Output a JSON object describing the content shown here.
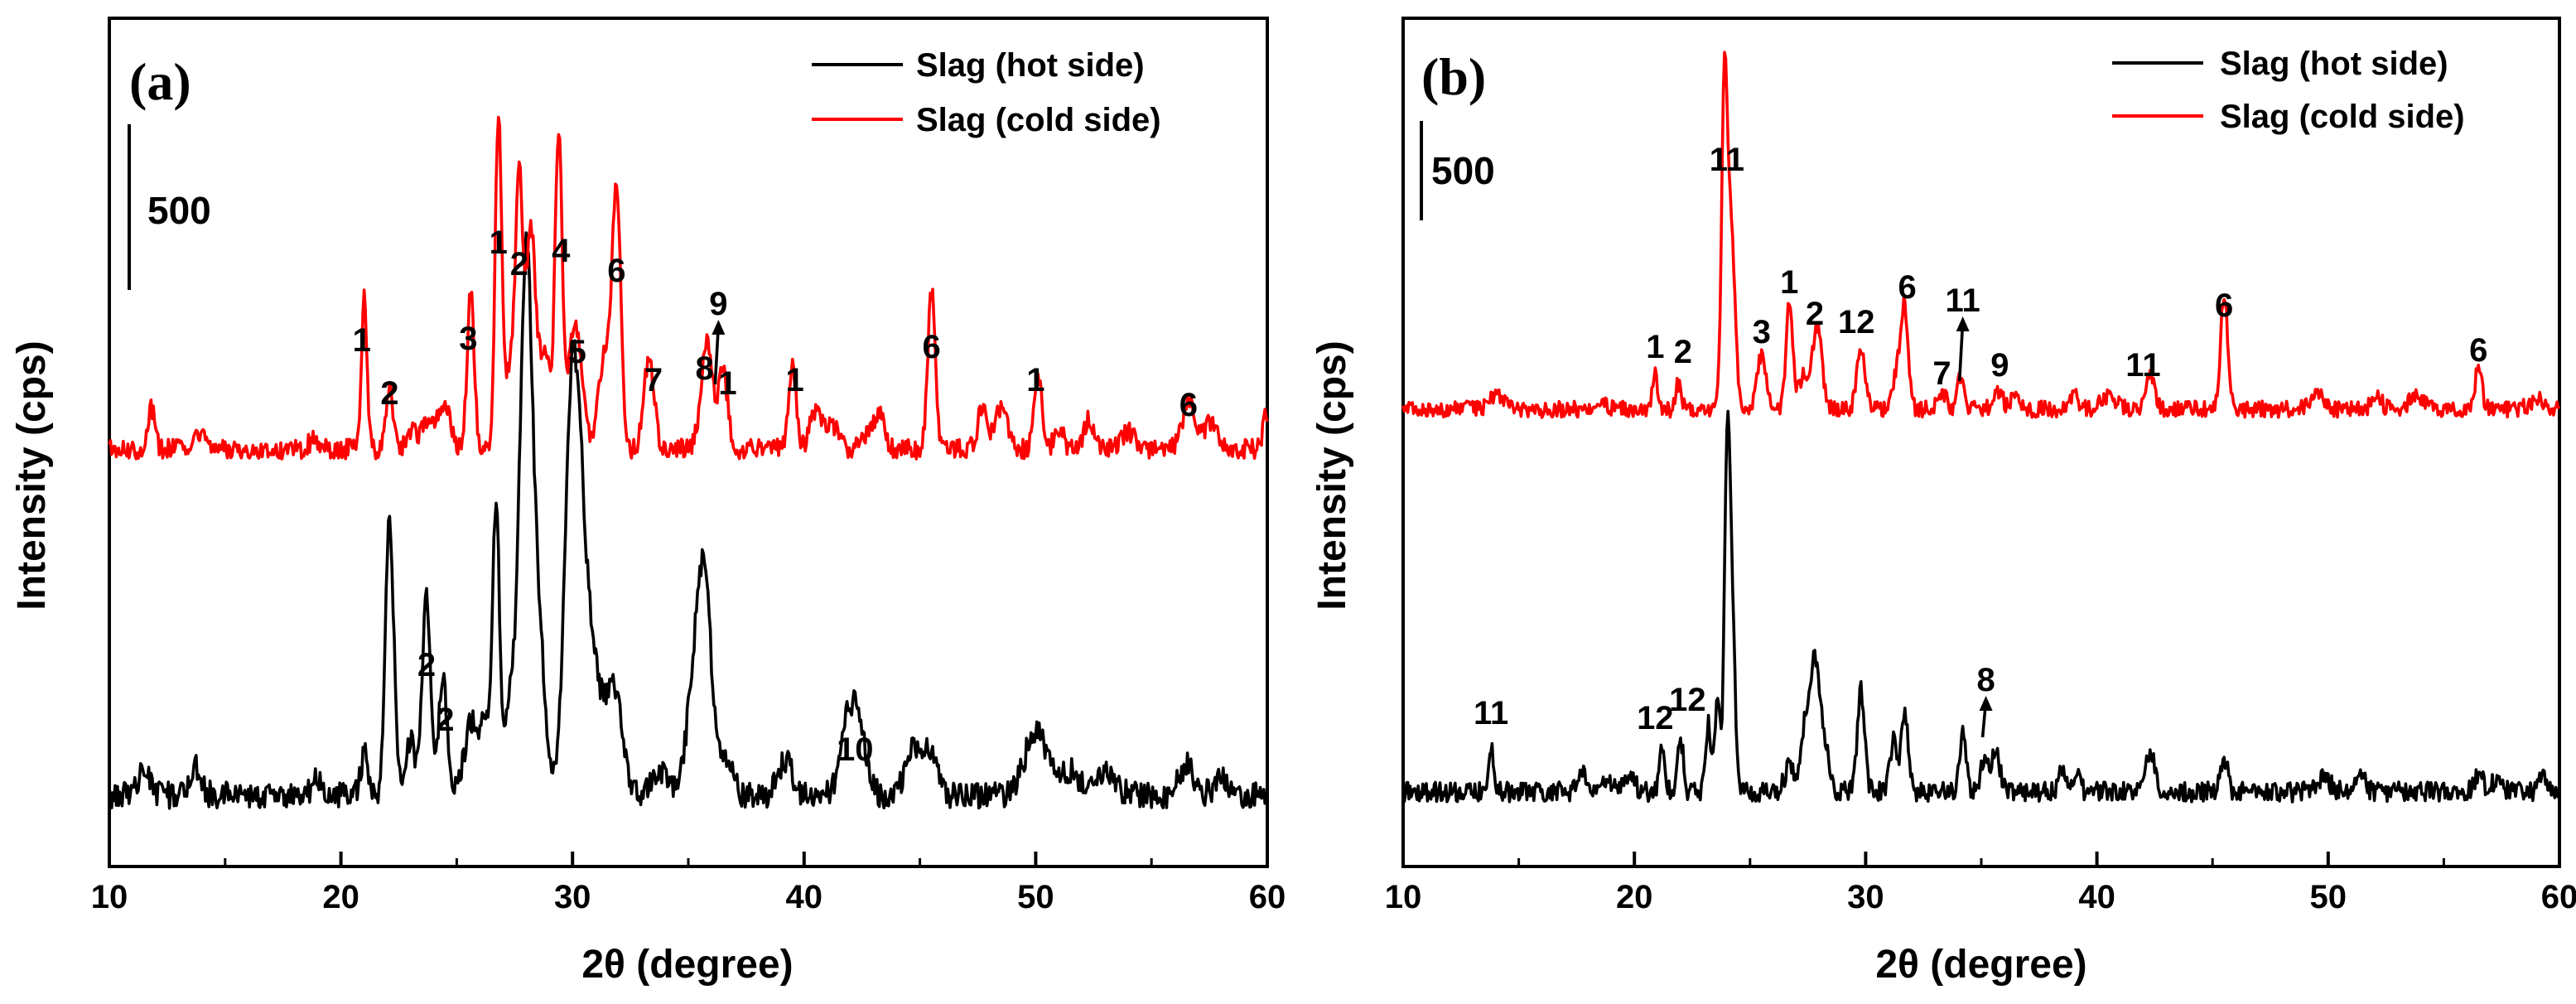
{
  "chart_data": [
    {
      "panel": "(a)",
      "type": "line",
      "xlabel": "2θ (degree)",
      "ylabel": "Intensity (cps)",
      "xlim": [
        10,
        60
      ],
      "xticks": [
        10,
        20,
        30,
        40,
        50,
        60
      ],
      "scale_bar": "500",
      "grid": false,
      "legend": "top-right",
      "series": [
        {
          "name": "Slag (hot side)",
          "color": "#000000",
          "baseline": 480,
          "noise": 8,
          "peaks": [
            [
              11.5,
              15,
              0.25
            ],
            [
              13.7,
              18,
              0.25
            ],
            [
              19.0,
              10,
              0.2
            ],
            [
              21.0,
              25,
              0.15
            ],
            [
              22.1,
              165,
              0.18
            ],
            [
              23.0,
              35,
              0.2
            ],
            [
              23.7,
              120,
              0.18
            ],
            [
              24.4,
              70,
              0.18
            ],
            [
              25.6,
              40,
              0.3
            ],
            [
              26.3,
              40,
              0.3
            ],
            [
              26.7,
              160,
              0.15
            ],
            [
              27.3,
              55,
              0.2
            ],
            [
              28.0,
              330,
              0.28
            ],
            [
              28.6,
              80,
              0.25
            ],
            [
              29.9,
              185,
              0.28
            ],
            [
              30.3,
              150,
              0.3
            ],
            [
              30.9,
              70,
              0.35
            ],
            [
              31.8,
              65,
              0.35
            ],
            [
              33.8,
              15,
              0.4
            ],
            [
              35.2,
              55,
              0.3
            ],
            [
              35.7,
              125,
              0.3
            ],
            [
              36.6,
              20,
              0.3
            ],
            [
              39.2,
              22,
              0.3
            ],
            [
              41.8,
              30,
              0.3
            ],
            [
              42.3,
              45,
              0.35
            ],
            [
              44.8,
              28,
              0.4
            ],
            [
              45.5,
              20,
              0.3
            ],
            [
              49.8,
              25,
              0.4
            ],
            [
              50.3,
              20,
              0.4
            ],
            [
              51.5,
              15,
              0.4
            ],
            [
              53.0,
              15,
              0.4
            ],
            [
              56.5,
              18,
              0.3
            ],
            [
              58.0,
              10,
              0.3
            ]
          ]
        },
        {
          "name": "Slag (cold side)",
          "color": "#ff0000",
          "baseline": 271,
          "noise": 6,
          "peaks": [
            [
              11.8,
              25,
              0.15
            ],
            [
              13.9,
              8,
              0.2
            ],
            [
              18.8,
              5,
              0.2
            ],
            [
              21.0,
              90,
              0.12
            ],
            [
              22.1,
              35,
              0.15
            ],
            [
              23.1,
              12,
              0.2
            ],
            [
              23.7,
              15,
              0.2
            ],
            [
              24.4,
              28,
              0.3
            ],
            [
              25.6,
              95,
              0.15
            ],
            [
              26.8,
              200,
              0.14
            ],
            [
              27.3,
              50,
              0.2
            ],
            [
              27.7,
              160,
              0.16
            ],
            [
              28.2,
              130,
              0.2
            ],
            [
              28.8,
              60,
              0.25
            ],
            [
              29.4,
              185,
              0.15
            ],
            [
              30.1,
              75,
              0.3
            ],
            [
              31.4,
              60,
              0.25
            ],
            [
              31.9,
              155,
              0.18
            ],
            [
              33.3,
              55,
              0.22
            ],
            [
              35.8,
              65,
              0.25
            ],
            [
              36.5,
              45,
              0.2
            ],
            [
              39.5,
              50,
              0.16
            ],
            [
              40.5,
              22,
              0.25
            ],
            [
              41.2,
              15,
              0.25
            ],
            [
              42.8,
              10,
              0.3
            ],
            [
              43.3,
              20,
              0.2
            ],
            [
              45.5,
              95,
              0.16
            ],
            [
              47.7,
              25,
              0.2
            ],
            [
              48.5,
              25,
              0.25
            ],
            [
              50.1,
              45,
              0.16
            ],
            [
              51.0,
              12,
              0.2
            ],
            [
              52.3,
              18,
              0.2
            ],
            [
              54.0,
              10,
              0.3
            ],
            [
              56.6,
              30,
              0.25
            ],
            [
              57.5,
              15,
              0.3
            ],
            [
              59.9,
              20,
              0.1
            ]
          ]
        }
      ],
      "annotations": [
        {
          "text": "1",
          "x": 20.9,
          "y": 212
        },
        {
          "text": "2",
          "x": 22.1,
          "y": 244
        },
        {
          "text": "3",
          "x": 25.5,
          "y": 211
        },
        {
          "text": "1",
          "x": 26.8,
          "y": 153
        },
        {
          "text": "2",
          "x": 27.7,
          "y": 166
        },
        {
          "text": "4",
          "x": 29.5,
          "y": 158
        },
        {
          "text": "5",
          "x": 30.2,
          "y": 219
        },
        {
          "text": "6",
          "x": 31.9,
          "y": 170
        },
        {
          "text": "7",
          "x": 33.5,
          "y": 236
        },
        {
          "text": "8",
          "x": 35.7,
          "y": 229
        },
        {
          "text": "9",
          "x": 36.3,
          "y": 190,
          "arrow": true,
          "ax": 36.3,
          "ay": 232
        },
        {
          "text": "1",
          "x": 36.7,
          "y": 238
        },
        {
          "text": "1",
          "x": 39.6,
          "y": 236
        },
        {
          "text": "6",
          "x": 45.5,
          "y": 216
        },
        {
          "text": "1",
          "x": 50.0,
          "y": 236
        },
        {
          "text": "6",
          "x": 56.6,
          "y": 251
        },
        {
          "text": "2",
          "x": 23.7,
          "y": 408
        },
        {
          "text": "2",
          "x": 24.5,
          "y": 441
        },
        {
          "text": "10",
          "x": 42.2,
          "y": 459
        }
      ]
    },
    {
      "panel": "(b)",
      "type": "line",
      "xlabel": "2θ (degree)",
      "ylabel": "Intensity (cps)",
      "xlim": [
        10,
        60
      ],
      "xticks": [
        10,
        20,
        30,
        40,
        50,
        60
      ],
      "scale_bar": "500",
      "grid": false,
      "legend": "top-right",
      "series": [
        {
          "name": "Slag (hot side)",
          "color": "#000000",
          "baseline": 478,
          "noise": 6,
          "peaks": [
            [
              13.8,
              28,
              0.12
            ],
            [
              17.8,
              10,
              0.2
            ],
            [
              18.8,
              8,
              0.2
            ],
            [
              19.8,
              10,
              0.2
            ],
            [
              21.2,
              30,
              0.12
            ],
            [
              22.0,
              32,
              0.12
            ],
            [
              23.2,
              40,
              0.12
            ],
            [
              23.6,
              55,
              0.12
            ],
            [
              24.0,
              180,
              0.11
            ],
            [
              24.2,
              120,
              0.14
            ],
            [
              26.7,
              15,
              0.2
            ],
            [
              27.4,
              40,
              0.2
            ],
            [
              27.8,
              75,
              0.18
            ],
            [
              28.2,
              30,
              0.2
            ],
            [
              29.8,
              62,
              0.15
            ],
            [
              31.2,
              30,
              0.15
            ],
            [
              31.7,
              48,
              0.15
            ],
            [
              34.2,
              35,
              0.14
            ],
            [
              35.1,
              18,
              0.14
            ],
            [
              35.6,
              25,
              0.2
            ],
            [
              38.5,
              15,
              0.15
            ],
            [
              39.1,
              12,
              0.15
            ],
            [
              42.3,
              25,
              0.2
            ],
            [
              45.5,
              20,
              0.15
            ],
            [
              49.8,
              8,
              0.3
            ],
            [
              51.4,
              12,
              0.2
            ],
            [
              56.5,
              10,
              0.2
            ],
            [
              57.3,
              8,
              0.2
            ],
            [
              59.3,
              8,
              0.2
            ]
          ]
        },
        {
          "name": "Slag (cold side)",
          "color": "#ff0000",
          "baseline": 247,
          "noise": 5,
          "peaks": [
            [
              14.0,
              8,
              0.3
            ],
            [
              18.5,
              6,
              0.2
            ],
            [
              20.9,
              20,
              0.12
            ],
            [
              21.9,
              15,
              0.12
            ],
            [
              23.9,
              195,
              0.13
            ],
            [
              24.2,
              100,
              0.16
            ],
            [
              25.5,
              32,
              0.2
            ],
            [
              26.7,
              65,
              0.14
            ],
            [
              27.3,
              20,
              0.2
            ],
            [
              27.9,
              50,
              0.2
            ],
            [
              29.8,
              35,
              0.18
            ],
            [
              31.4,
              25,
              0.2
            ],
            [
              31.7,
              55,
              0.15
            ],
            [
              33.3,
              10,
              0.2
            ],
            [
              34.1,
              20,
              0.14
            ],
            [
              35.7,
              12,
              0.2
            ],
            [
              36.5,
              8,
              0.2
            ],
            [
              39.0,
              8,
              0.2
            ],
            [
              40.5,
              8,
              0.3
            ],
            [
              42.3,
              20,
              0.2
            ],
            [
              45.5,
              70,
              0.15
            ],
            [
              49.5,
              10,
              0.3
            ],
            [
              52.1,
              8,
              0.2
            ],
            [
              53.8,
              8,
              0.3
            ],
            [
              56.5,
              25,
              0.15
            ],
            [
              59.0,
              6,
              0.3
            ]
          ]
        }
      ],
      "annotations": [
        {
          "text": "11",
          "x": 24.0,
          "y": 103
        },
        {
          "text": "1",
          "x": 20.9,
          "y": 216
        },
        {
          "text": "2",
          "x": 22.1,
          "y": 219
        },
        {
          "text": "3",
          "x": 25.5,
          "y": 207
        },
        {
          "text": "1",
          "x": 26.7,
          "y": 177
        },
        {
          "text": "2",
          "x": 27.8,
          "y": 196
        },
        {
          "text": "12",
          "x": 29.6,
          "y": 201
        },
        {
          "text": "6",
          "x": 31.8,
          "y": 180
        },
        {
          "text": "11",
          "x": 34.2,
          "y": 188,
          "arrow": true,
          "ax": 34.2,
          "ay": 230
        },
        {
          "text": "7",
          "x": 33.3,
          "y": 232
        },
        {
          "text": "9",
          "x": 35.8,
          "y": 227
        },
        {
          "text": "11",
          "x": 42.0,
          "y": 227
        },
        {
          "text": "6",
          "x": 45.5,
          "y": 191
        },
        {
          "text": "6",
          "x": 56.5,
          "y": 218
        },
        {
          "text": "11",
          "x": 13.8,
          "y": 437
        },
        {
          "text": "12",
          "x": 20.9,
          "y": 440
        },
        {
          "text": "12",
          "x": 22.3,
          "y": 429
        },
        {
          "text": "8",
          "x": 35.2,
          "y": 417,
          "arrow": true,
          "ax": 35.2,
          "ay": 445
        }
      ]
    }
  ]
}
